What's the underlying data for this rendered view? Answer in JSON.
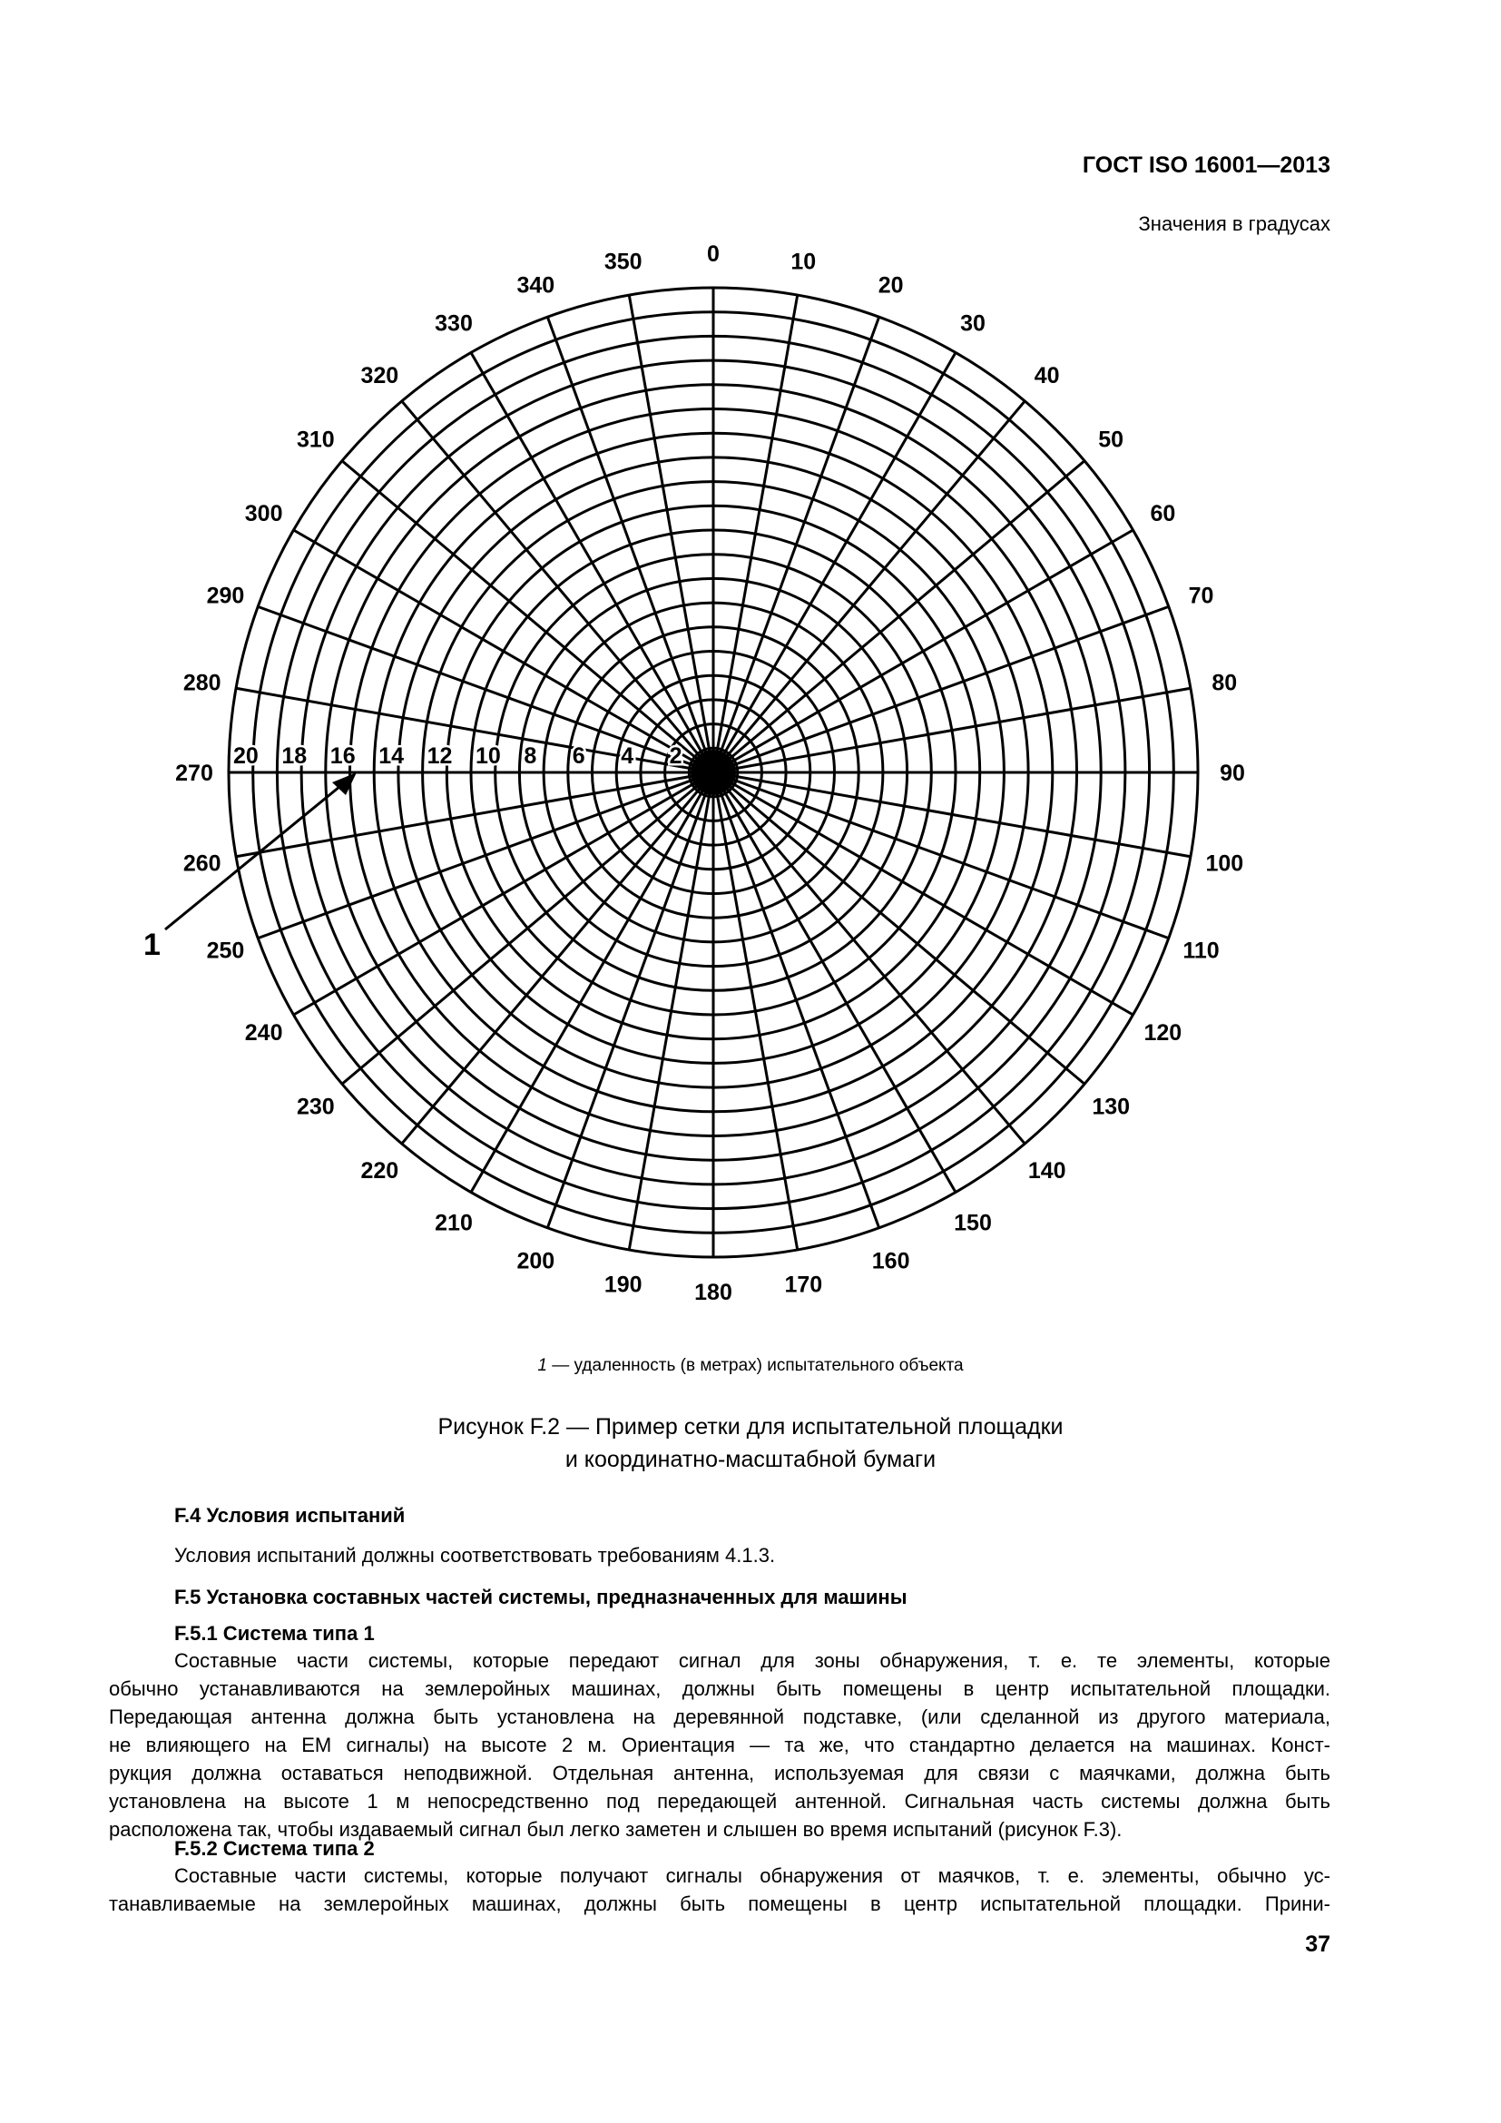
{
  "header": {
    "standard": "ГОСТ ISO 16001—2013",
    "units_note": "Значения в градусах"
  },
  "figure": {
    "angle_labels": [
      "0",
      "10",
      "20",
      "30",
      "40",
      "50",
      "60",
      "70",
      "80",
      "90",
      "100",
      "110",
      "120",
      "130",
      "140",
      "150",
      "160",
      "170",
      "180",
      "190",
      "200",
      "210",
      "220",
      "230",
      "240",
      "250",
      "260",
      "270",
      "280",
      "290",
      "300",
      "310",
      "320",
      "330",
      "340",
      "350"
    ],
    "distance_labels": [
      "20",
      "18",
      "16",
      "14",
      "12",
      "10",
      "8",
      "6",
      "4",
      "2"
    ],
    "ring_count": 20,
    "spoke_step_degrees": 10,
    "callout": "1",
    "key_number": "1",
    "key_text": " — удаленность (в метрах) испытательного объекта",
    "caption_line1": "Рисунок F.2 — Пример сетки для испытательной площадки",
    "caption_line2": "и координатно-масштабной бумаги"
  },
  "sections": {
    "f4_heading": "F.4 Условия испытаний",
    "f4_text": "Условия испытаний должны соответствовать требованиям 4.1.3.",
    "f5_heading": "F.5 Установка составных частей системы, предназначенных для машины",
    "f51_heading": "F.5.1 Система типа 1",
    "f51_lines": [
      "Составные части системы, которые передают сигнал для зоны обнаружения, т. е. те элементы, которые",
      "обычно устанавливаются на землеройных машинах, должны быть помещены в центр испытательной площадки.",
      "Передающая антенна должна быть установлена на деревянной подставке, (или сделанной из другого материала,",
      "не влияющего на ЕМ сигналы) на высоте 2 м. Ориентация — та же, что стандартно делается на машинах. Конст-",
      "рукция должна оставаться неподвижной. Отдельная антенна, используемая для связи с маячками, должна быть",
      "установлена на высоте 1 м непосредственно под передающей антенной. Сигнальная часть системы должна быть",
      "расположена так, чтобы издаваемый сигнал был легко заметен и слышен во время испытаний (рисунок F.3)."
    ],
    "f52_heading": "F.5.2 Система типа 2",
    "f52_lines": [
      "Составные части системы, которые получают сигналы обнаружения от маячков, т. е. элементы, обычно ус-",
      "танавливаемые на землеройных машинах, должны быть помещены в центр испытательной площадки. Прини-"
    ]
  },
  "page_number": "37"
}
